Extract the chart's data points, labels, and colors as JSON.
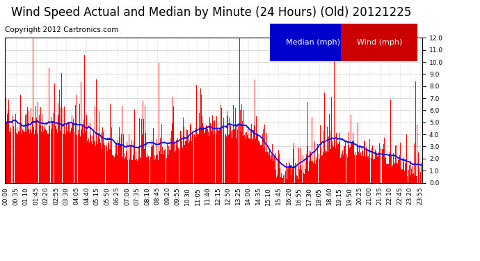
{
  "title": "Wind Speed Actual and Median by Minute (24 Hours) (Old) 20121225",
  "copyright": "Copyright 2012 Cartronics.com",
  "legend_median_label": "Median (mph)",
  "legend_wind_label": "Wind (mph)",
  "legend_median_bg": "#0000cc",
  "legend_wind_bg": "#cc0000",
  "ylim": [
    0.0,
    12.0
  ],
  "ytick_labels": [
    "0.0",
    "1.0",
    "2.0",
    "3.0",
    "4.0",
    "5.0",
    "6.0",
    "7.0",
    "8.0",
    "9.0",
    "10.0",
    "11.0",
    "12.0"
  ],
  "bar_color": "#ff0000",
  "line_color": "#0000ff",
  "bg_color": "#ffffff",
  "grid_color": "#bbbbbb",
  "title_fontsize": 12,
  "copyright_fontsize": 7.5,
  "legend_fontsize": 8,
  "tick_fontsize": 6.5,
  "n_minutes": 1440,
  "tick_interval": 35,
  "seed": 42
}
